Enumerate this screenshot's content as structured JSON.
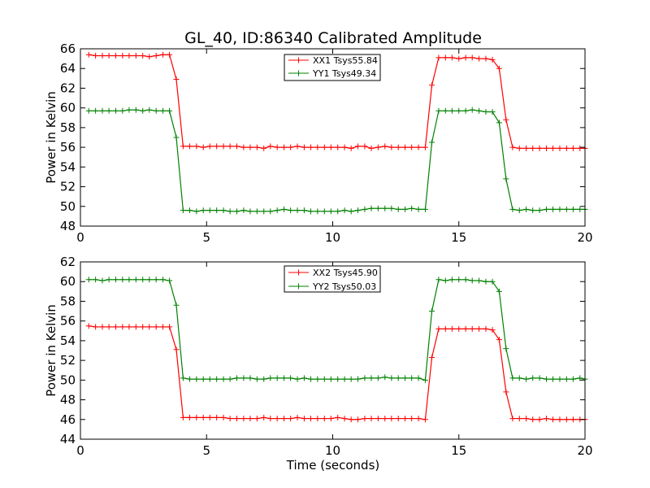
{
  "chart_data": [
    {
      "type": "line",
      "title": "GL_40, ID:86340 Calibrated Amplitude",
      "xlabel": "",
      "ylabel": "Power in Kelvin",
      "xlim": [
        0,
        20
      ],
      "ylim": [
        48,
        66
      ],
      "xticks": [
        "0",
        "5",
        "10",
        "15",
        "20"
      ],
      "yticks": [
        "48",
        "50",
        "52",
        "54",
        "56",
        "58",
        "60",
        "62",
        "64",
        "66"
      ],
      "legend_position": "top-center",
      "grid": false,
      "x": [
        0.33,
        0.6,
        0.87,
        1.13,
        1.4,
        1.67,
        1.93,
        2.2,
        2.47,
        2.73,
        3.0,
        3.27,
        3.53,
        3.8,
        4.07,
        4.33,
        4.6,
        4.87,
        5.13,
        5.4,
        5.67,
        5.93,
        6.2,
        6.47,
        6.73,
        7.0,
        7.27,
        7.53,
        7.8,
        8.07,
        8.33,
        8.6,
        8.87,
        9.13,
        9.4,
        9.67,
        9.93,
        10.2,
        10.47,
        10.73,
        11.0,
        11.27,
        11.53,
        11.8,
        12.07,
        12.33,
        12.6,
        12.87,
        13.13,
        13.4,
        13.67,
        13.93,
        14.2,
        14.47,
        14.73,
        15.0,
        15.27,
        15.53,
        15.8,
        16.07,
        16.33,
        16.6,
        16.87,
        17.13,
        17.4,
        17.67,
        17.93,
        18.2,
        18.47,
        18.73,
        19.0,
        19.27,
        19.53,
        19.8,
        20.0
      ],
      "series": [
        {
          "name": "XX1 Tsys55.84",
          "color": "#ff0000",
          "values": [
            65.4,
            65.3,
            65.3,
            65.3,
            65.3,
            65.3,
            65.3,
            65.3,
            65.3,
            65.2,
            65.3,
            65.4,
            65.4,
            62.9,
            56.1,
            56.1,
            56.1,
            56.0,
            56.1,
            56.1,
            56.1,
            56.1,
            56.1,
            56.0,
            56.0,
            56.0,
            55.9,
            56.1,
            56.0,
            56.0,
            56.0,
            56.1,
            56.0,
            56.0,
            56.0,
            56.0,
            56.0,
            56.0,
            56.0,
            55.9,
            56.1,
            56.1,
            55.9,
            56.0,
            56.1,
            56.0,
            56.0,
            56.0,
            56.0,
            56.0,
            56.0,
            62.3,
            65.1,
            65.1,
            65.1,
            65.0,
            65.1,
            65.1,
            65.0,
            65.0,
            64.9,
            64.0,
            58.8,
            56.0,
            55.9,
            55.9,
            55.9,
            55.9,
            55.9,
            55.9,
            55.9,
            55.9,
            55.9,
            55.9,
            55.9
          ]
        },
        {
          "name": "YY1 Tsys49.34",
          "color": "#008000",
          "values": [
            59.7,
            59.7,
            59.7,
            59.7,
            59.7,
            59.7,
            59.8,
            59.8,
            59.7,
            59.8,
            59.7,
            59.7,
            59.7,
            57.0,
            49.6,
            49.6,
            49.5,
            49.6,
            49.6,
            49.6,
            49.6,
            49.5,
            49.5,
            49.6,
            49.5,
            49.5,
            49.5,
            49.5,
            49.6,
            49.7,
            49.6,
            49.6,
            49.6,
            49.5,
            49.5,
            49.5,
            49.5,
            49.5,
            49.6,
            49.5,
            49.6,
            49.7,
            49.8,
            49.8,
            49.8,
            49.8,
            49.7,
            49.7,
            49.8,
            49.7,
            49.7,
            56.5,
            59.7,
            59.7,
            59.7,
            59.7,
            59.7,
            59.8,
            59.7,
            59.6,
            59.6,
            58.5,
            52.8,
            49.7,
            49.6,
            49.7,
            49.6,
            49.6,
            49.7,
            49.7,
            49.7,
            49.7,
            49.7,
            49.7,
            49.7
          ]
        }
      ]
    },
    {
      "type": "line",
      "title": "",
      "xlabel": "Time (seconds)",
      "ylabel": "Power in Kelvin",
      "xlim": [
        0,
        20
      ],
      "ylim": [
        44,
        62
      ],
      "xticks": [
        "0",
        "5",
        "10",
        "15",
        "20"
      ],
      "yticks": [
        "44",
        "46",
        "48",
        "50",
        "52",
        "54",
        "56",
        "58",
        "60",
        "62"
      ],
      "legend_position": "top-center",
      "grid": false,
      "x": [
        0.33,
        0.6,
        0.87,
        1.13,
        1.4,
        1.67,
        1.93,
        2.2,
        2.47,
        2.73,
        3.0,
        3.27,
        3.53,
        3.8,
        4.07,
        4.33,
        4.6,
        4.87,
        5.13,
        5.4,
        5.67,
        5.93,
        6.2,
        6.47,
        6.73,
        7.0,
        7.27,
        7.53,
        7.8,
        8.07,
        8.33,
        8.6,
        8.87,
        9.13,
        9.4,
        9.67,
        9.93,
        10.2,
        10.47,
        10.73,
        11.0,
        11.27,
        11.53,
        11.8,
        12.07,
        12.33,
        12.6,
        12.87,
        13.13,
        13.4,
        13.67,
        13.93,
        14.2,
        14.47,
        14.73,
        15.0,
        15.27,
        15.53,
        15.8,
        16.07,
        16.33,
        16.6,
        16.87,
        17.13,
        17.4,
        17.67,
        17.93,
        18.2,
        18.47,
        18.73,
        19.0,
        19.27,
        19.53,
        19.8,
        20.0
      ],
      "series": [
        {
          "name": "XX2 Tsys45.90",
          "color": "#ff0000",
          "values": [
            55.5,
            55.4,
            55.4,
            55.4,
            55.4,
            55.4,
            55.4,
            55.4,
            55.4,
            55.4,
            55.4,
            55.4,
            55.4,
            53.1,
            46.2,
            46.2,
            46.2,
            46.2,
            46.2,
            46.2,
            46.2,
            46.1,
            46.1,
            46.1,
            46.1,
            46.1,
            46.2,
            46.1,
            46.1,
            46.1,
            46.1,
            46.2,
            46.1,
            46.1,
            46.1,
            46.1,
            46.1,
            46.2,
            46.1,
            46.0,
            46.0,
            46.1,
            46.1,
            46.1,
            46.1,
            46.1,
            46.1,
            46.1,
            46.1,
            46.1,
            46.0,
            52.3,
            55.2,
            55.2,
            55.2,
            55.2,
            55.2,
            55.2,
            55.2,
            55.2,
            55.1,
            54.1,
            48.8,
            46.1,
            46.1,
            46.1,
            46.0,
            46.0,
            46.1,
            46.0,
            46.0,
            46.0,
            46.0,
            46.0,
            46.0
          ]
        },
        {
          "name": "YY2 Tsys50.03",
          "color": "#008000",
          "values": [
            60.2,
            60.2,
            60.1,
            60.2,
            60.2,
            60.2,
            60.2,
            60.2,
            60.2,
            60.2,
            60.2,
            60.2,
            60.1,
            57.6,
            50.2,
            50.1,
            50.1,
            50.1,
            50.1,
            50.1,
            50.1,
            50.1,
            50.2,
            50.2,
            50.2,
            50.1,
            50.1,
            50.2,
            50.2,
            50.2,
            50.2,
            50.1,
            50.2,
            50.1,
            50.1,
            50.1,
            50.1,
            50.1,
            50.1,
            50.1,
            50.1,
            50.2,
            50.2,
            50.2,
            50.3,
            50.2,
            50.2,
            50.2,
            50.2,
            50.2,
            50.0,
            57.0,
            60.2,
            60.1,
            60.2,
            60.2,
            60.2,
            60.1,
            60.1,
            60.0,
            60.0,
            59.0,
            53.2,
            50.2,
            50.2,
            50.1,
            50.2,
            50.2,
            50.1,
            50.1,
            50.1,
            50.1,
            50.1,
            50.2,
            50.1
          ]
        }
      ]
    }
  ]
}
